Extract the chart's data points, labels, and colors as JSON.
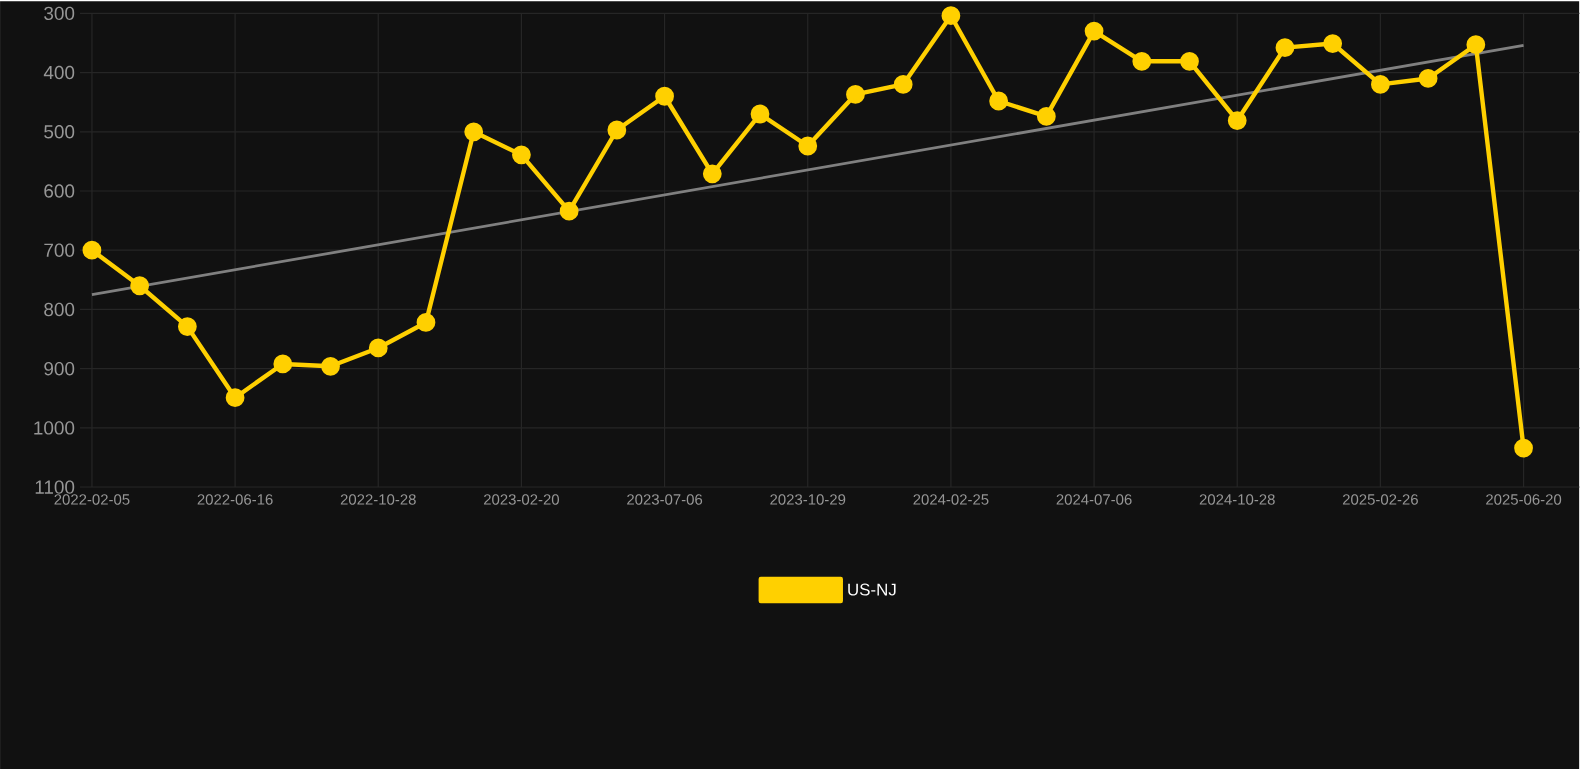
{
  "chart_data": {
    "type": "line",
    "categories": [
      "2022-02-05",
      null,
      null,
      "2022-06-16",
      null,
      null,
      "2022-10-28",
      null,
      null,
      "2023-02-20",
      null,
      null,
      "2023-07-06",
      null,
      null,
      "2023-10-29",
      null,
      null,
      "2024-02-25",
      null,
      null,
      "2024-07-06",
      null,
      null,
      "2024-10-28",
      null,
      null,
      "2025-02-26",
      null,
      null,
      "2025-06-20"
    ],
    "series": [
      {
        "type": "line",
        "color": "#808080",
        "marker": "none",
        "values": [
          775,
          null,
          null,
          null,
          null,
          null,
          null,
          null,
          null,
          null,
          null,
          null,
          null,
          null,
          null,
          null,
          null,
          null,
          null,
          null,
          null,
          null,
          null,
          null,
          null,
          null,
          null,
          null,
          null,
          null,
          354
        ]
      },
      {
        "name": "US-NJ",
        "color": "#ffd000",
        "values": [
          700,
          760,
          829,
          949,
          892,
          896,
          865,
          822,
          500,
          539,
          634,
          497,
          440,
          571,
          470,
          524,
          437,
          420,
          304,
          448,
          474,
          330,
          381,
          381,
          481,
          358,
          351,
          420,
          410,
          353,
          1034
        ]
      }
    ],
    "ylim": [
      1100,
      300
    ],
    "yticks": [
      300,
      400,
      500,
      600,
      700,
      800,
      900,
      1000,
      1100
    ],
    "grid": true,
    "legend": "bottom",
    "marker": "circle",
    "line_style": "solid"
  }
}
